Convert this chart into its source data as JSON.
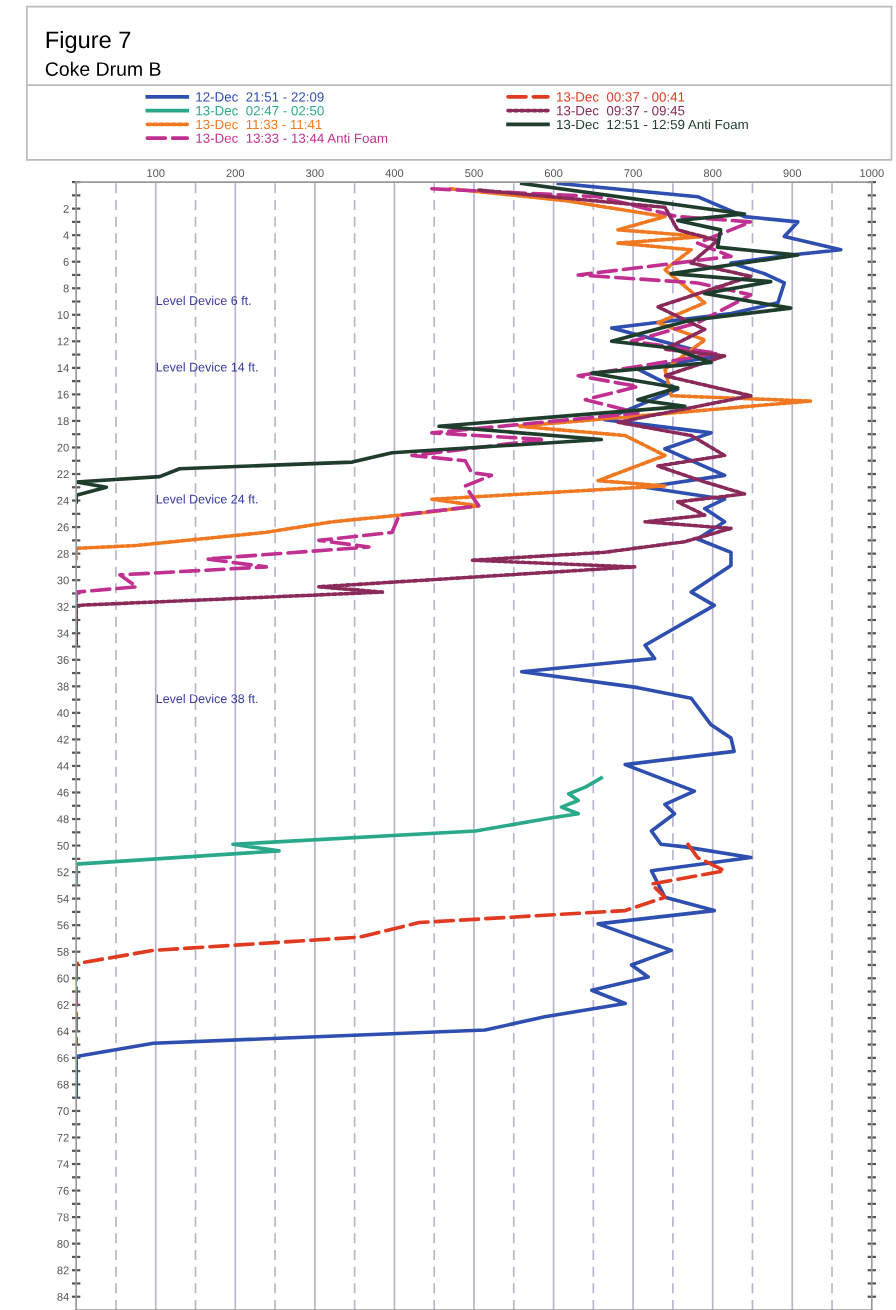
{
  "chart_data": {
    "type": "line",
    "title": "Figure 7",
    "subtitle": "Coke Drum B",
    "xlim": [
      0,
      1000
    ],
    "ylim": [
      85,
      0
    ],
    "xticks": [
      {
        "value": 50,
        "label": null
      },
      100,
      {
        "value": 150,
        "label": null
      },
      200,
      {
        "value": 250,
        "label": null
      },
      300,
      {
        "value": 350,
        "label": null
      },
      400,
      {
        "value": 450,
        "label": null
      },
      500,
      {
        "value": 550,
        "label": null
      },
      600,
      {
        "value": 650,
        "label": null
      },
      700,
      {
        "value": 750,
        "label": null
      },
      800,
      {
        "value": 850,
        "label": null
      },
      900,
      {
        "value": 950,
        "label": null
      },
      1000
    ],
    "yticks": [
      {
        "value": 0,
        "label": null
      },
      {
        "value": 1,
        "label": null
      },
      2,
      {
        "value": 3,
        "label": null
      },
      4,
      {
        "value": 5,
        "label": null
      },
      6,
      {
        "value": 7,
        "label": null
      },
      8,
      {
        "value": 9,
        "label": null
      },
      10,
      {
        "value": 11,
        "label": null
      },
      12,
      {
        "value": 13,
        "label": null
      },
      14,
      {
        "value": 15,
        "label": null
      },
      16,
      {
        "value": 17,
        "label": null
      },
      18,
      {
        "value": 19,
        "label": null
      },
      20,
      {
        "value": 21,
        "label": null
      },
      22,
      {
        "value": 23,
        "label": null
      },
      24,
      {
        "value": 25,
        "label": null
      },
      26,
      {
        "value": 27,
        "label": null
      },
      28,
      {
        "value": 29,
        "label": null
      },
      30,
      {
        "value": 31,
        "label": null
      },
      32,
      {
        "value": 33,
        "label": null
      },
      34,
      {
        "value": 35,
        "label": null
      },
      36,
      {
        "value": 37,
        "label": null
      },
      38,
      {
        "value": 39,
        "label": null
      },
      40,
      {
        "value": 41,
        "label": null
      },
      42,
      {
        "value": 43,
        "label": null
      },
      44,
      {
        "value": 45,
        "label": null
      },
      46,
      {
        "value": 47,
        "label": null
      },
      48,
      {
        "value": 49,
        "label": null
      },
      50,
      {
        "value": 51,
        "label": null
      },
      52,
      {
        "value": 53,
        "label": null
      },
      54,
      {
        "value": 55,
        "label": null
      },
      56,
      {
        "value": 57,
        "label": null
      },
      58,
      {
        "value": 59,
        "label": null
      },
      60,
      {
        "value": 61,
        "label": null
      },
      62,
      {
        "value": 63,
        "label": null
      },
      64,
      {
        "value": 65,
        "label": null
      },
      66,
      {
        "value": 67,
        "label": null
      },
      68,
      {
        "value": 69,
        "label": null
      },
      70,
      {
        "value": 71,
        "label": null
      },
      72,
      {
        "value": 73,
        "label": null
      },
      74,
      {
        "value": 75,
        "label": null
      },
      76,
      {
        "value": 77,
        "label": null
      },
      78,
      {
        "value": 79,
        "label": null
      },
      80,
      {
        "value": 81,
        "label": null
      },
      82,
      {
        "value": 83,
        "label": null
      },
      84
    ],
    "grid": "x",
    "legend": "top",
    "marker": "none",
    "series": [
      {
        "name": "12-Dec  21:51 - 22:09",
        "color": "#2f4fb0",
        "line_style": "solid",
        "x": [
          606,
          781,
          840,
          907,
          890,
          961,
          898,
          823,
          865,
          890,
          882,
          823,
          673,
          806,
          706,
          756,
          664,
          798,
          740,
          815,
          715,
          815,
          790,
          815,
          781,
          823,
          823,
          773,
          802,
          715,
          727,
          560,
          706,
          773,
          798,
          823,
          827,
          690,
          777,
          740,
          752,
          723,
          735,
          765,
          848,
          723,
          740,
          802,
          656,
          748,
          698,
          719,
          648,
          690,
          589,
          514,
          97,
          0,
          0
        ],
        "values": [
          0.1,
          1.1,
          2.6,
          3.0,
          4.1,
          5.1,
          5.5,
          6.1,
          6.9,
          7.6,
          9.1,
          9.9,
          11.0,
          13.1,
          14.1,
          15.6,
          17.9,
          18.9,
          20.1,
          22.1,
          23.0,
          23.9,
          24.6,
          25.6,
          26.9,
          27.9,
          28.9,
          30.9,
          31.9,
          34.9,
          35.9,
          36.9,
          38.1,
          38.9,
          40.9,
          41.9,
          42.9,
          43.9,
          45.9,
          46.9,
          47.6,
          48.9,
          49.9,
          50.1,
          50.9,
          51.9,
          53.9,
          54.9,
          55.9,
          57.9,
          59.0,
          59.9,
          60.9,
          61.9,
          62.9,
          63.9,
          64.9,
          65.9,
          68.9
        ]
      },
      {
        "name": "13-Dec  02:47 - 02:50",
        "color": "#2aa88a",
        "line_style": "solid",
        "x": [
          660,
          640,
          619,
          631,
          610,
          631,
          598,
          502,
          197,
          255,
          0,
          0
        ],
        "values": [
          44.9,
          45.6,
          46.1,
          46.6,
          47.1,
          47.6,
          47.9,
          48.9,
          49.9,
          50.4,
          51.4,
          52.9
        ]
      },
      {
        "name": "13-Dec  11:33 - 11:41",
        "color": "#f07820",
        "line_style": "dotted",
        "x": [
          470,
          615,
          740,
          681,
          790,
          681,
          773,
          740,
          790,
          731,
          790,
          740,
          748,
          923,
          556,
          690,
          740,
          656,
          740,
          447,
          506,
          439,
          322,
          238,
          72,
          0,
          0
        ],
        "values": [
          0.5,
          1.4,
          2.6,
          3.6,
          4.1,
          4.6,
          5.1,
          6.6,
          9.1,
          10.6,
          11.9,
          14.1,
          16.1,
          16.5,
          18.4,
          19.1,
          20.6,
          22.5,
          22.9,
          23.9,
          24.4,
          24.9,
          25.6,
          26.4,
          27.4,
          27.6,
          28.4
        ]
      },
      {
        "name": "13-Dec  13:33 - 13:44 Anti Foam",
        "color": "#c03090",
        "line_style": "dashed",
        "x": [
          447,
          656,
          756,
          848,
          781,
          823,
          631,
          781,
          848,
          781,
          698,
          806,
          706,
          631,
          706,
          640,
          706,
          656,
          447,
          589,
          422,
          489,
          497,
          522,
          489,
          506,
          406,
          397,
          305,
          368,
          164,
          239,
          55,
          76,
          0,
          0
        ],
        "values": [
          0.5,
          1.1,
          2.6,
          3.0,
          4.6,
          5.6,
          7.0,
          7.6,
          8.5,
          10.6,
          12.0,
          12.9,
          13.9,
          14.6,
          15.4,
          16.4,
          17.4,
          17.7,
          18.9,
          19.4,
          20.6,
          21.0,
          21.9,
          22.1,
          22.9,
          24.4,
          25.1,
          26.4,
          27.0,
          27.5,
          28.4,
          29.0,
          29.6,
          30.5,
          30.9,
          34.9
        ]
      },
      {
        "name": "13-Dec  00:37 - 00:41",
        "color": "#e03a20",
        "line_style": "dashed",
        "x": [
          769,
          781,
          815,
          723,
          740,
          690,
          431,
          356,
          97,
          0,
          0
        ],
        "values": [
          49.9,
          50.9,
          51.9,
          52.9,
          53.9,
          54.9,
          55.8,
          56.9,
          57.9,
          58.9,
          64.9
        ]
      },
      {
        "name": "13-Dec  09:37 - 09:45",
        "color": "#8a2a5a",
        "line_style": "dotted",
        "x": [
          506,
          740,
          756,
          806,
          773,
          848,
          731,
          790,
          740,
          815,
          740,
          848,
          681,
          773,
          815,
          731,
          790,
          840,
          756,
          790,
          715,
          823,
          765,
          664,
          497,
          702,
          305,
          385,
          0,
          0
        ],
        "values": [
          0.6,
          1.9,
          3.6,
          4.4,
          6.1,
          7.1,
          9.4,
          11.1,
          12.6,
          13.1,
          14.6,
          16.1,
          18.1,
          19.1,
          20.6,
          21.4,
          22.6,
          23.5,
          24.1,
          25.1,
          25.6,
          26.1,
          27.1,
          27.9,
          28.5,
          29.0,
          30.5,
          30.9,
          31.9,
          34.9
        ]
      },
      {
        "name": "13-Dec  12:51 - 12:59 Anti Foam",
        "color": "#1f3d2c",
        "line_style": "solid",
        "x": [
          560,
          840,
          756,
          810,
          806,
          907,
          748,
          873,
          790,
          898,
          773,
          673,
          748,
          798,
          648,
          756,
          706,
          765,
          456,
          660,
          397,
          347,
          130,
          105,
          0,
          38,
          0,
          0
        ],
        "values": [
          0.1,
          2.4,
          2.9,
          3.6,
          4.9,
          5.5,
          6.9,
          7.5,
          8.4,
          9.5,
          10.4,
          12.0,
          12.5,
          13.6,
          14.4,
          15.5,
          16.4,
          16.9,
          18.4,
          19.4,
          20.4,
          21.1,
          21.6,
          22.2,
          22.6,
          23.0,
          23.6,
          24.1
        ]
      }
    ],
    "annotations": [
      "Level Device 6 ft.",
      "Level Device 14 ft.",
      "Level Device 24 ft.",
      "Level Device 38 ft."
    ]
  }
}
